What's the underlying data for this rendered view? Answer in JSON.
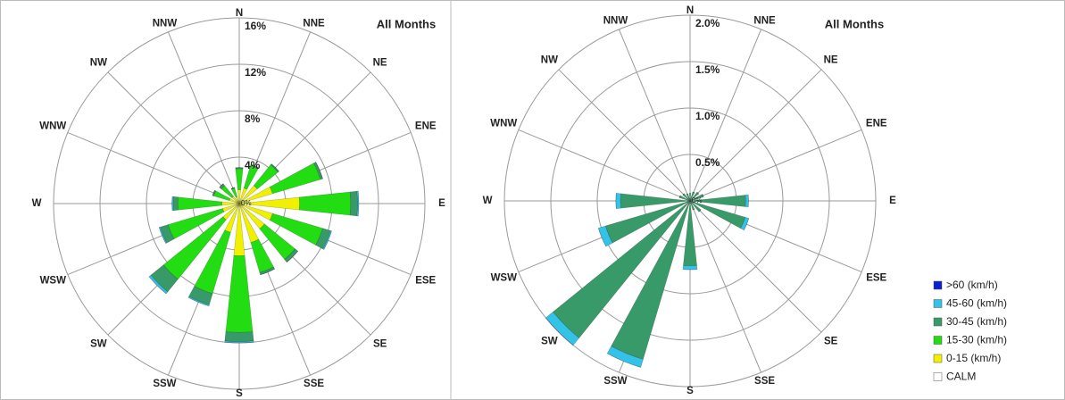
{
  "legend": {
    "items": [
      {
        "name": "0-15 (km/h)",
        "color": "#f0f000"
      },
      {
        "name": "15-30 (km/h)",
        "color": "#22dd11"
      },
      {
        "name": "30-45 (km/h)",
        "color": "#389a68"
      },
      {
        "name": "45-60 (km/h)",
        "color": "#33c3e8"
      },
      {
        "name": ">60 (km/h)",
        "color": "#0a1fd0"
      }
    ],
    "calm": "CALM"
  },
  "chart_data": [
    {
      "type": "windrose",
      "title": "All Months",
      "categories": [
        "N",
        "NNE",
        "NE",
        "ENE",
        "E",
        "ESE",
        "SE",
        "SSE",
        "S",
        "SSW",
        "SW",
        "WSW",
        "W",
        "WNW",
        "NW",
        "NNW"
      ],
      "rlim": [
        0,
        16
      ],
      "rticks": [
        {
          "value": 0,
          "label": "0%"
        },
        {
          "value": 4,
          "label": "4%"
        },
        {
          "value": 8,
          "label": "8%"
        },
        {
          "value": 12,
          "label": "12%"
        },
        {
          "value": 16,
          "label": "16%"
        }
      ],
      "series": [
        {
          "values": [
            1.2,
            1.4,
            2.0,
            3.0,
            5.2,
            3.0,
            2.8,
            3.5,
            4.5,
            2.6,
            1.8,
            1.5,
            1.5,
            0.9,
            0.8,
            0.6
          ]
        },
        {
          "values": [
            1.8,
            2.0,
            2.3,
            4.3,
            4.4,
            4.5,
            3.4,
            2.7,
            6.6,
            5.5,
            6.6,
            4.9,
            3.8,
            1.4,
            1.2,
            0.8
          ]
        },
        {
          "values": [
            0.1,
            0.1,
            0.1,
            0.2,
            0.6,
            0.7,
            0.3,
            0.2,
            0.8,
            1.0,
            1.4,
            0.7,
            0.4,
            0.1,
            0.2,
            0.05
          ]
        },
        {
          "values": [
            0,
            0,
            0,
            0,
            0.1,
            0.1,
            0,
            0,
            0.1,
            0.1,
            0.2,
            0.1,
            0.1,
            0,
            0,
            0
          ]
        },
        {
          "values": [
            0,
            0,
            0,
            0,
            0,
            0,
            0,
            0,
            0,
            0,
            0,
            0,
            0,
            0,
            0,
            0
          ]
        }
      ]
    },
    {
      "type": "windrose",
      "title": "All Months",
      "categories": [
        "N",
        "NNE",
        "NE",
        "ENE",
        "E",
        "ESE",
        "SE",
        "SSE",
        "S",
        "SSW",
        "SW",
        "WSW",
        "W",
        "WNW",
        "NW",
        "NNW"
      ],
      "rlim": [
        0,
        2
      ],
      "rticks": [
        {
          "value": 0,
          "label": "0%"
        },
        {
          "value": 0.5,
          "label": "0.5%"
        },
        {
          "value": 1,
          "label": "1.0%"
        },
        {
          "value": 1.5,
          "label": "1.5%"
        },
        {
          "value": 2,
          "label": "2.0%"
        }
      ],
      "series": [
        {
          "values": [
            0,
            0,
            0,
            0,
            0,
            0,
            0,
            0,
            0,
            0,
            0,
            0,
            0,
            0,
            0,
            0
          ]
        },
        {
          "values": [
            0,
            0,
            0,
            0,
            0,
            0,
            0,
            0,
            0,
            0,
            0,
            0,
            0,
            0,
            0,
            0
          ]
        },
        {
          "values": [
            0.08,
            0.1,
            0.12,
            0.15,
            0.6,
            0.62,
            0.15,
            0.1,
            0.7,
            1.78,
            1.9,
            0.95,
            0.75,
            0.12,
            0.1,
            0.08
          ]
        },
        {
          "values": [
            0,
            0,
            0,
            0,
            0.03,
            0.04,
            0,
            0,
            0.04,
            0.09,
            0.1,
            0.08,
            0.05,
            0,
            0,
            0
          ]
        },
        {
          "values": [
            0,
            0,
            0,
            0,
            0,
            0,
            0,
            0,
            0,
            0,
            0,
            0,
            0,
            0,
            0,
            0
          ]
        }
      ]
    }
  ]
}
